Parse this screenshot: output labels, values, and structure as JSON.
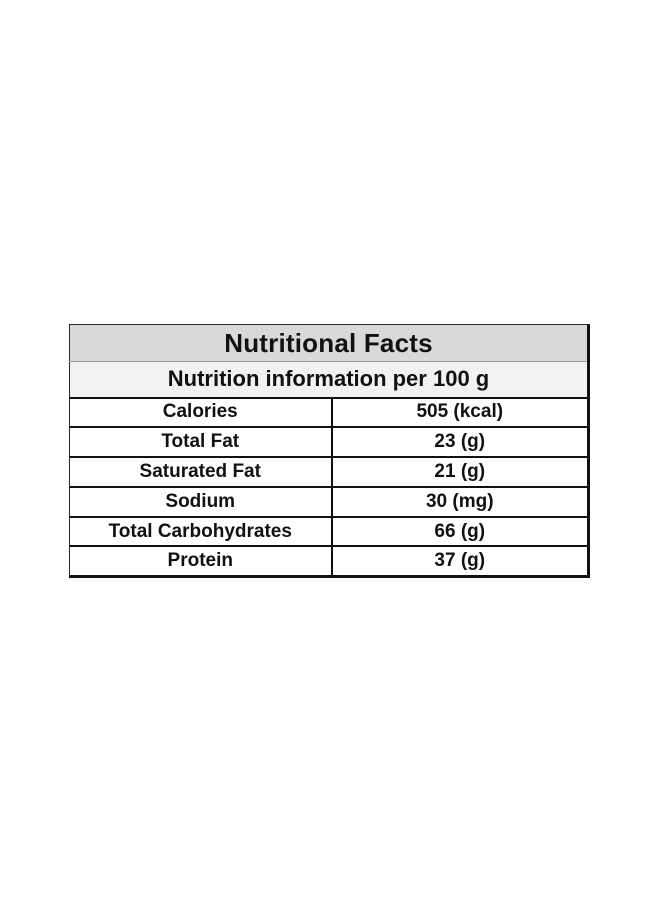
{
  "table": {
    "title": "Nutritional Facts",
    "subtitle": "Nutrition information per 100 g",
    "rows": [
      {
        "nutrient": "Calories",
        "value": "505 (kcal)"
      },
      {
        "nutrient": "Total Fat",
        "value": "23 (g)"
      },
      {
        "nutrient": "Saturated Fat",
        "value": "21 (g)"
      },
      {
        "nutrient": "Sodium",
        "value": "30 (mg)"
      },
      {
        "nutrient": "Total Carbohydrates",
        "value": "66 (g)"
      },
      {
        "nutrient": "Protein",
        "value": "37 (g)"
      }
    ]
  }
}
